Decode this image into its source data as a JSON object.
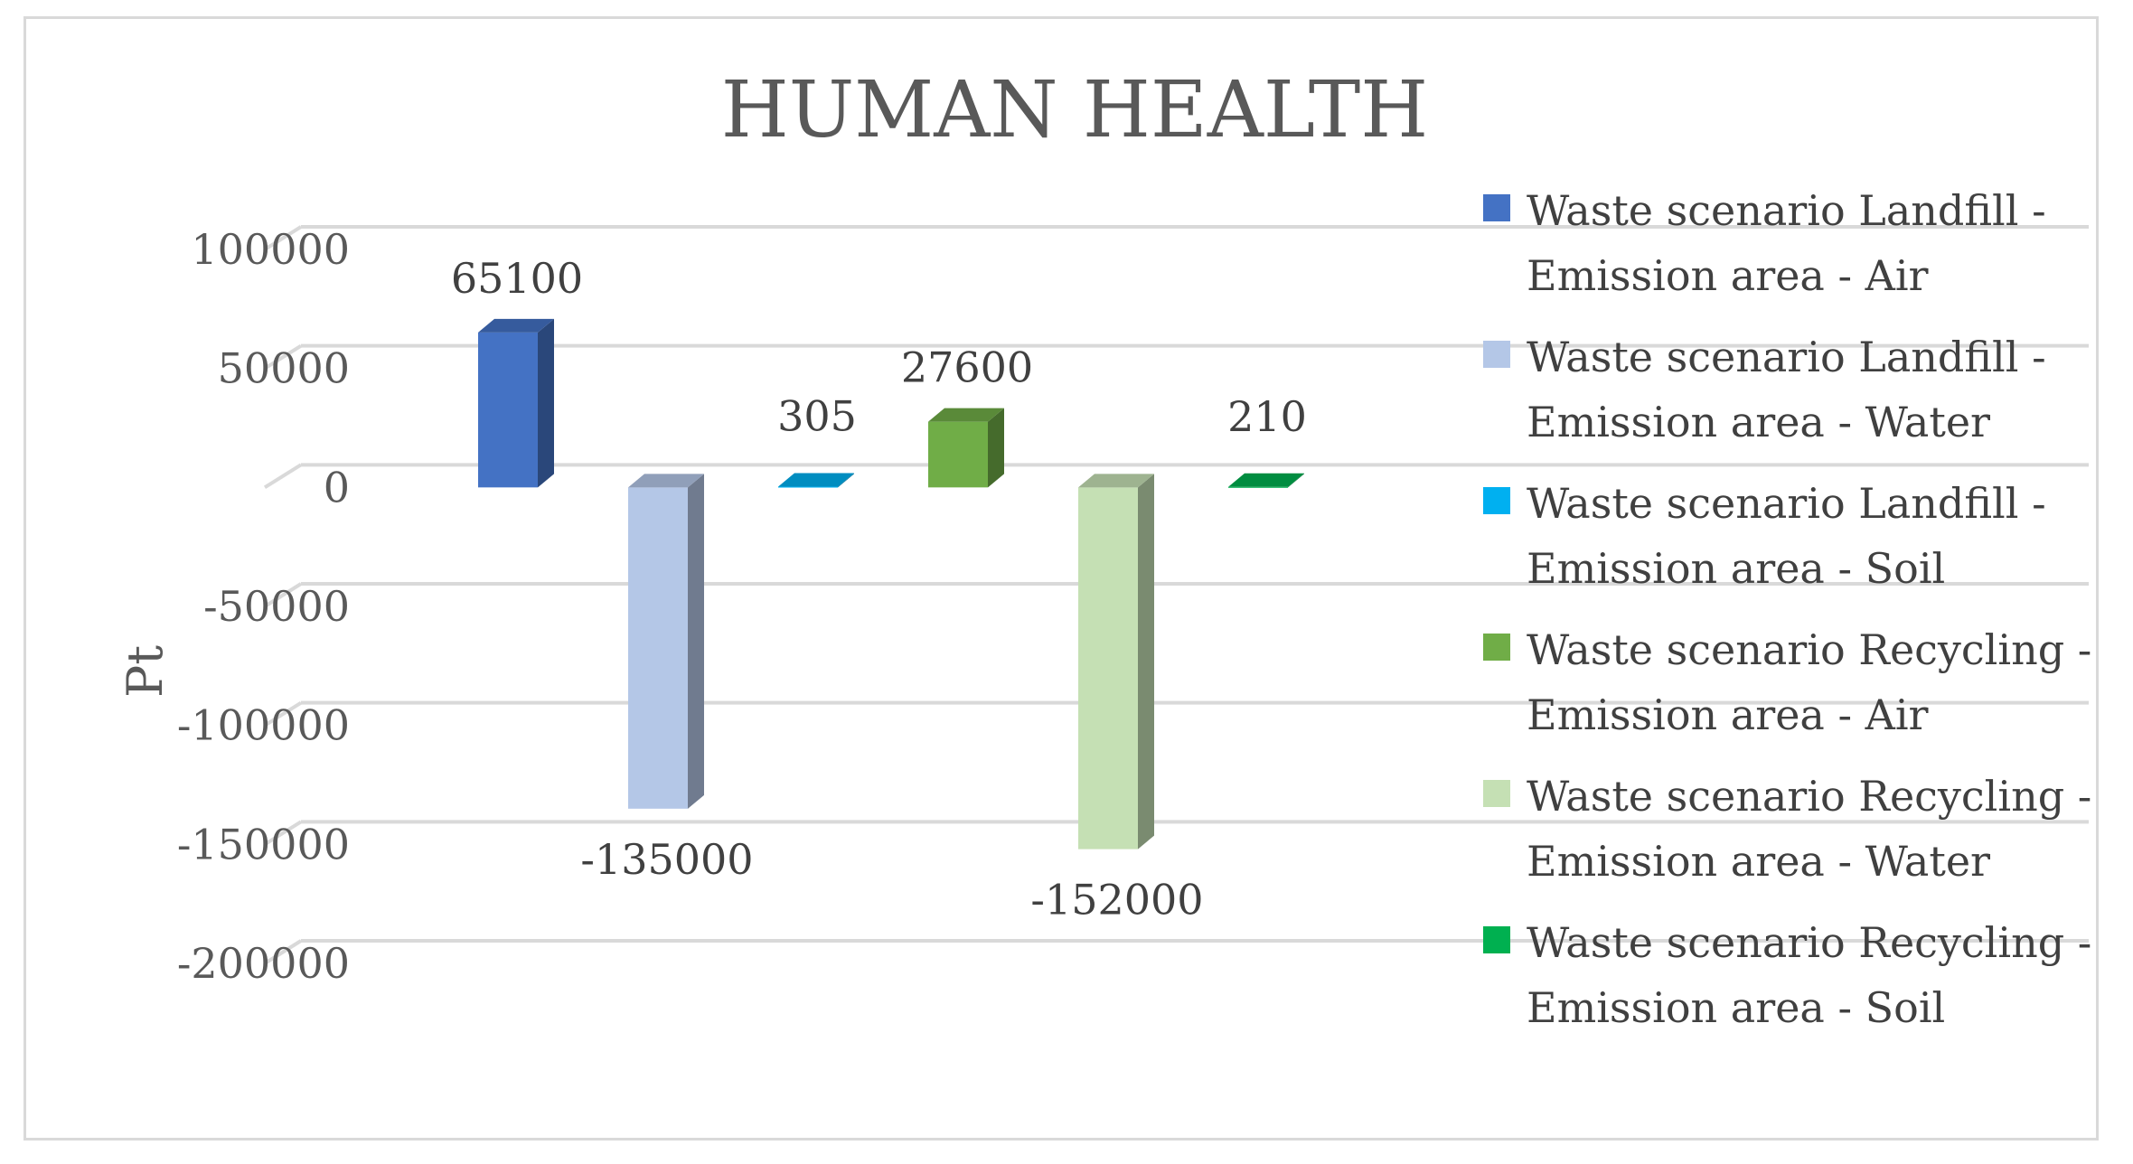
{
  "chart_data": {
    "type": "bar",
    "title": "HUMAN HEALTH",
    "ylabel": "Pt",
    "xlabel": "",
    "ylim": [
      -200000,
      100000
    ],
    "y_ticks": [
      100000,
      50000,
      0,
      -50000,
      -100000,
      -150000,
      -200000
    ],
    "y_tick_labels": [
      "100000",
      "50000",
      "0",
      "-50000",
      "-100000",
      "-150000",
      "-200000"
    ],
    "grid": true,
    "legend_position": "right",
    "style": "3d-column",
    "series": [
      {
        "name": "Waste scenario Landfill - Emission area -  Air",
        "value": 65100,
        "label": "65100",
        "color": "#4472c4"
      },
      {
        "name": "Waste scenario Landfill - Emission area -  Water",
        "value": -135000,
        "label": "-135000",
        "color": "#b4c7e7"
      },
      {
        "name": "Waste scenario Landfill - Emission area -  Soil",
        "value": 305,
        "label": "305",
        "color": "#00b0f0"
      },
      {
        "name": "Waste scenario Recycling - Emission area -  Air",
        "value": 27600,
        "label": "27600",
        "color": "#70ad47"
      },
      {
        "name": "Waste scenario Recycling - Emission area -  Water",
        "value": -152000,
        "label": "-152000",
        "color": "#c5e0b4"
      },
      {
        "name": "Waste scenario Recycling - Emission area -  Soil",
        "value": 210,
        "label": "210",
        "color": "#00b050"
      }
    ]
  },
  "legend": {
    "items": [
      {
        "line1": "Waste scenario Landfill -",
        "line2": "Emission area -  Air"
      },
      {
        "line1": "Waste scenario Landfill -",
        "line2": "Emission area -  Water"
      },
      {
        "line1": "Waste scenario Landfill -",
        "line2": "Emission area -  Soil"
      },
      {
        "line1": "Waste scenario Recycling -",
        "line2": "Emission area -  Air"
      },
      {
        "line1": "Waste scenario Recycling -",
        "line2": "Emission area -  Water"
      },
      {
        "line1": "Waste scenario Recycling -",
        "line2": "Emission area -  Soil"
      }
    ]
  }
}
